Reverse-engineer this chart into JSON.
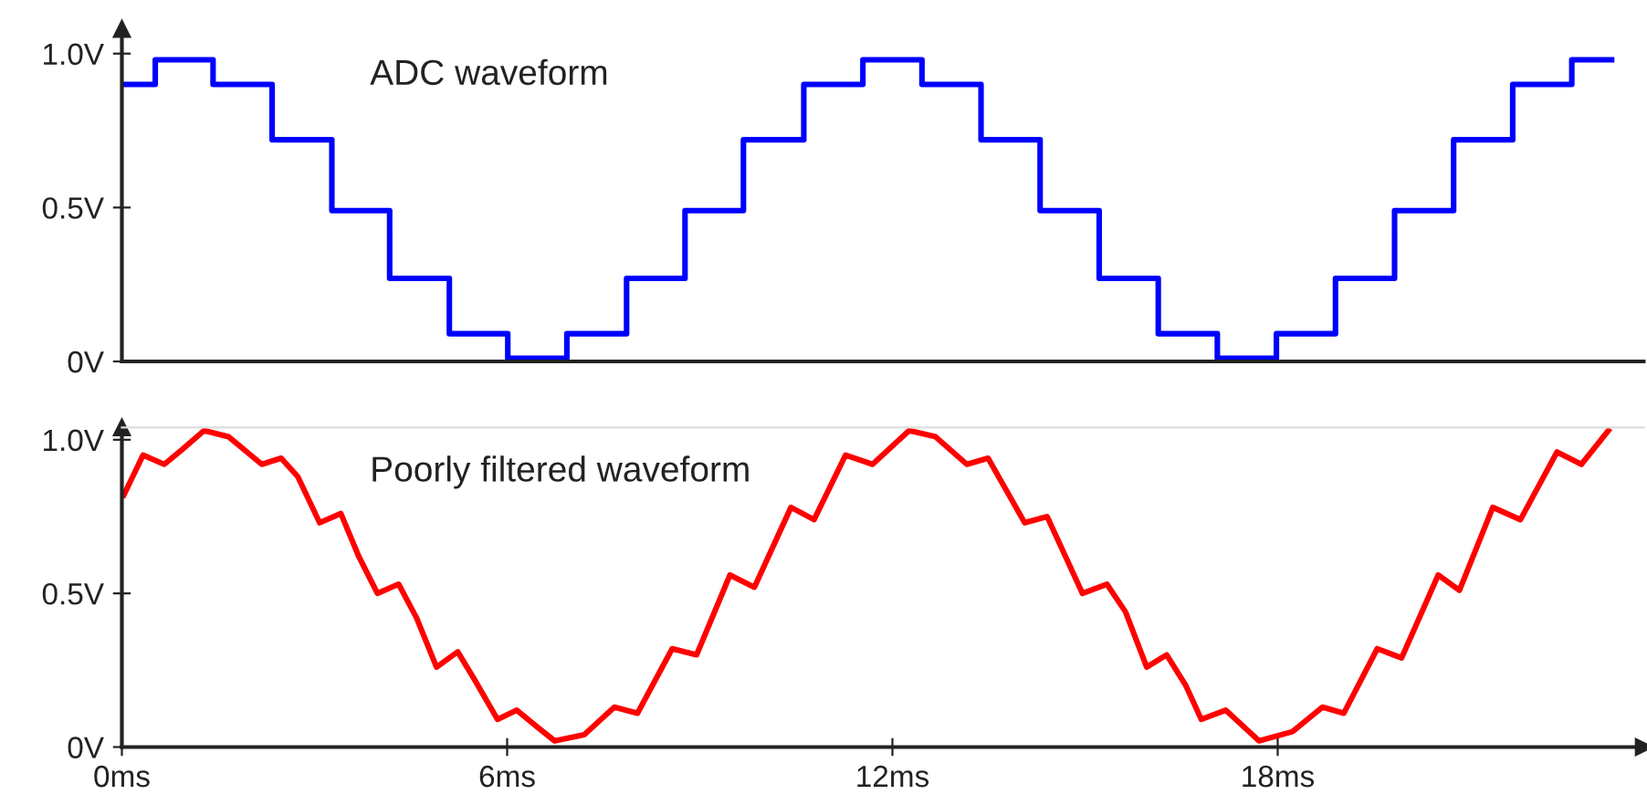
{
  "chart_data": [
    {
      "type": "step",
      "title": "ADC waveform",
      "tick_labels": "y",
      "grid": false,
      "xlim": [
        0,
        23.7
      ],
      "ylim": [
        0,
        1.08
      ],
      "yticks": [
        {
          "value": 0,
          "label": "0V"
        },
        {
          "value": 0.5,
          "label": "0.5V"
        },
        {
          "value": 1.0,
          "label": "1.0V"
        }
      ],
      "series": [
        {
          "color": "#0000ff",
          "x": [
            0,
            0.52,
            1.42,
            2.34,
            3.27,
            4.17,
            5.1,
            6.01,
            6.93,
            7.86,
            8.77,
            9.68,
            10.62,
            11.54,
            12.46,
            13.38,
            14.3,
            15.22,
            16.14,
            17.06,
            17.98,
            18.9,
            19.82,
            20.74,
            21.66,
            22.58,
            23.2
          ],
          "values": [
            0.9,
            0.98,
            0.9,
            0.72,
            0.49,
            0.27,
            0.09,
            0.01,
            0.09,
            0.27,
            0.49,
            0.72,
            0.9,
            0.98,
            0.9,
            0.72,
            0.49,
            0.27,
            0.09,
            0.01,
            0.09,
            0.27,
            0.49,
            0.72,
            0.9,
            0.98,
            0.98
          ]
        }
      ]
    },
    {
      "type": "line",
      "title": "Poorly filtered waveform",
      "grid": false,
      "xlim": [
        0,
        23.7
      ],
      "ylim": [
        0,
        1.04
      ],
      "xticks": [
        {
          "value": 0,
          "label": "0ms"
        },
        {
          "value": 6,
          "label": "6ms"
        },
        {
          "value": 12,
          "label": "12ms"
        },
        {
          "value": 18,
          "label": "18ms"
        }
      ],
      "yticks": [
        {
          "value": 0,
          "label": "0V"
        },
        {
          "value": 0.5,
          "label": "0.5V"
        },
        {
          "value": 1.0,
          "label": "1.0V"
        }
      ],
      "series": [
        {
          "color": "#ff0000",
          "x": [
            0.03,
            0.33,
            0.66,
            0.95,
            1.28,
            1.66,
            2.18,
            2.48,
            2.74,
            3.08,
            3.41,
            3.69,
            3.98,
            4.31,
            4.59,
            4.9,
            5.23,
            5.49,
            5.85,
            6.15,
            6.44,
            6.74,
            7.2,
            7.67,
            8.03,
            8.57,
            8.95,
            9.47,
            9.85,
            10.42,
            10.78,
            11.27,
            11.69,
            12.26,
            12.67,
            13.16,
            13.49,
            14.06,
            14.41,
            14.96,
            15.34,
            15.63,
            15.96,
            16.27,
            16.57,
            16.81,
            17.19,
            17.71,
            18.23,
            18.7,
            19.03,
            19.55,
            19.93,
            20.5,
            20.83,
            21.35,
            21.78,
            22.35,
            22.73,
            23.15
          ],
          "values": [
            0.82,
            0.95,
            0.92,
            0.97,
            1.03,
            1.01,
            0.92,
            0.94,
            0.88,
            0.73,
            0.76,
            0.62,
            0.5,
            0.53,
            0.42,
            0.26,
            0.31,
            0.22,
            0.09,
            0.12,
            0.07,
            0.02,
            0.04,
            0.13,
            0.11,
            0.32,
            0.3,
            0.56,
            0.52,
            0.78,
            0.74,
            0.95,
            0.92,
            1.03,
            1.01,
            0.92,
            0.94,
            0.73,
            0.75,
            0.5,
            0.53,
            0.44,
            0.26,
            0.3,
            0.2,
            0.09,
            0.12,
            0.02,
            0.05,
            0.13,
            0.11,
            0.32,
            0.29,
            0.56,
            0.51,
            0.78,
            0.74,
            0.96,
            0.92,
            1.03
          ]
        }
      ]
    }
  ]
}
